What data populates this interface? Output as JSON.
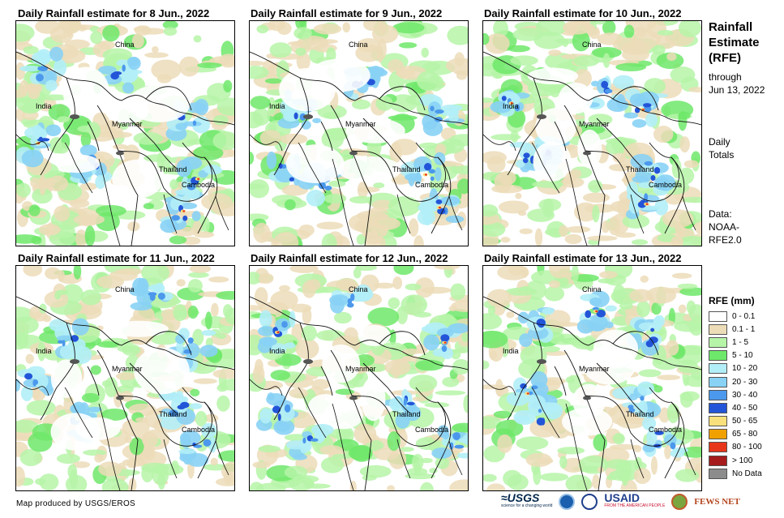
{
  "panels": [
    {
      "title": "Daily Rainfall estimate for 8 Jun., 2022",
      "labels": {
        "china": "China",
        "india": "India",
        "myanmar": "Myanmar",
        "thailand": "Thailand",
        "cambodia": "Cambodia"
      }
    },
    {
      "title": "Daily Rainfall estimate for 9 Jun., 2022",
      "labels": {
        "china": "China",
        "india": "India",
        "myanmar": "Myanmar",
        "thailand": "Thailand",
        "cambodia": "Cambodia"
      }
    },
    {
      "title": "Daily Rainfall estimate for 10 Jun., 2022",
      "labels": {
        "china": "China",
        "india": "India",
        "myanmar": "Myanmar",
        "thailand": "Thailand",
        "cambodia": "Cambodia"
      }
    },
    {
      "title": "Daily Rainfall estimate for 11 Jun., 2022",
      "labels": {
        "china": "China",
        "india": "India",
        "myanmar": "Myanmar",
        "thailand": "Thailand",
        "cambodia": "Cambodia"
      }
    },
    {
      "title": "Daily Rainfall estimate for 12 Jun., 2022",
      "labels": {
        "china": "China",
        "india": "India",
        "myanmar": "Myanmar",
        "thailand": "Thailand",
        "cambodia": "Cambodia"
      }
    },
    {
      "title": "Daily Rainfall estimate for 13 Jun., 2022",
      "labels": {
        "china": "China",
        "india": "India",
        "myanmar": "Myanmar",
        "thailand": "Thailand",
        "cambodia": "Cambodia"
      }
    }
  ],
  "sidebar": {
    "title_line1": "Rainfall",
    "title_line2": "Estimate",
    "title_line3": "(RFE)",
    "through_line1": "through",
    "through_line2": "Jun 13, 2022",
    "totals_line1": "Daily",
    "totals_line2": "Totals",
    "data_line1": "Data:",
    "data_line2": "NOAA-",
    "data_line3": "RFE2.0"
  },
  "legend": {
    "title": "RFE (mm)",
    "items": [
      {
        "label": "0 - 0.1",
        "color": "#ffffff"
      },
      {
        "label": "0.1 - 1",
        "color": "#ecdcb8"
      },
      {
        "label": "1 - 5",
        "color": "#b6f5a8"
      },
      {
        "label": "5 - 10",
        "color": "#6ee86a"
      },
      {
        "label": "10 - 20",
        "color": "#b2eef7"
      },
      {
        "label": "20 - 30",
        "color": "#88d2f5"
      },
      {
        "label": "30 - 40",
        "color": "#4b98ec"
      },
      {
        "label": "40 - 50",
        "color": "#2355d8"
      },
      {
        "label": "50 - 65",
        "color": "#f8e07c"
      },
      {
        "label": "65 - 80",
        "color": "#f0a000"
      },
      {
        "label": "80 - 100",
        "color": "#e8361a"
      },
      {
        "label": "> 100",
        "color": "#a61c1c"
      },
      {
        "label": "No Data",
        "color": "#8c8c8c"
      }
    ]
  },
  "footer": {
    "credit": "Map produced by USGS/EROS",
    "usgs": "≈USGS",
    "usgs_tagline": "science for a changing world",
    "usaid": "USAID",
    "usaid_tagline": "FROM THE AMERICAN PEOPLE",
    "fews": "FEWS NET"
  }
}
